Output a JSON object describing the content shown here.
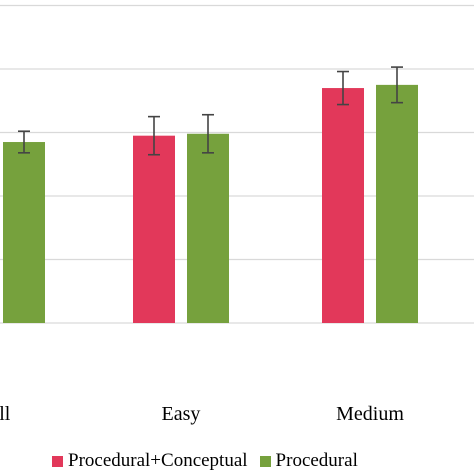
{
  "chart_data": {
    "type": "bar",
    "categories": [
      "Overall",
      "Easy",
      "Medium"
    ],
    "visible_category_labels": [
      "rall",
      "Easy",
      "Medium"
    ],
    "series": [
      {
        "name": "Procedural+Conceptual",
        "color": "#e2385a",
        "values": [
          null,
          2.95,
          3.7
        ],
        "errors": [
          null,
          0.3,
          0.26
        ]
      },
      {
        "name": "Procedural",
        "color": "#76a13d",
        "values": [
          2.85,
          2.98,
          3.75
        ],
        "errors": [
          0.17,
          0.3,
          0.28
        ]
      }
    ],
    "ylim": [
      0,
      5
    ],
    "grid": true,
    "legend_position": "bottom"
  }
}
